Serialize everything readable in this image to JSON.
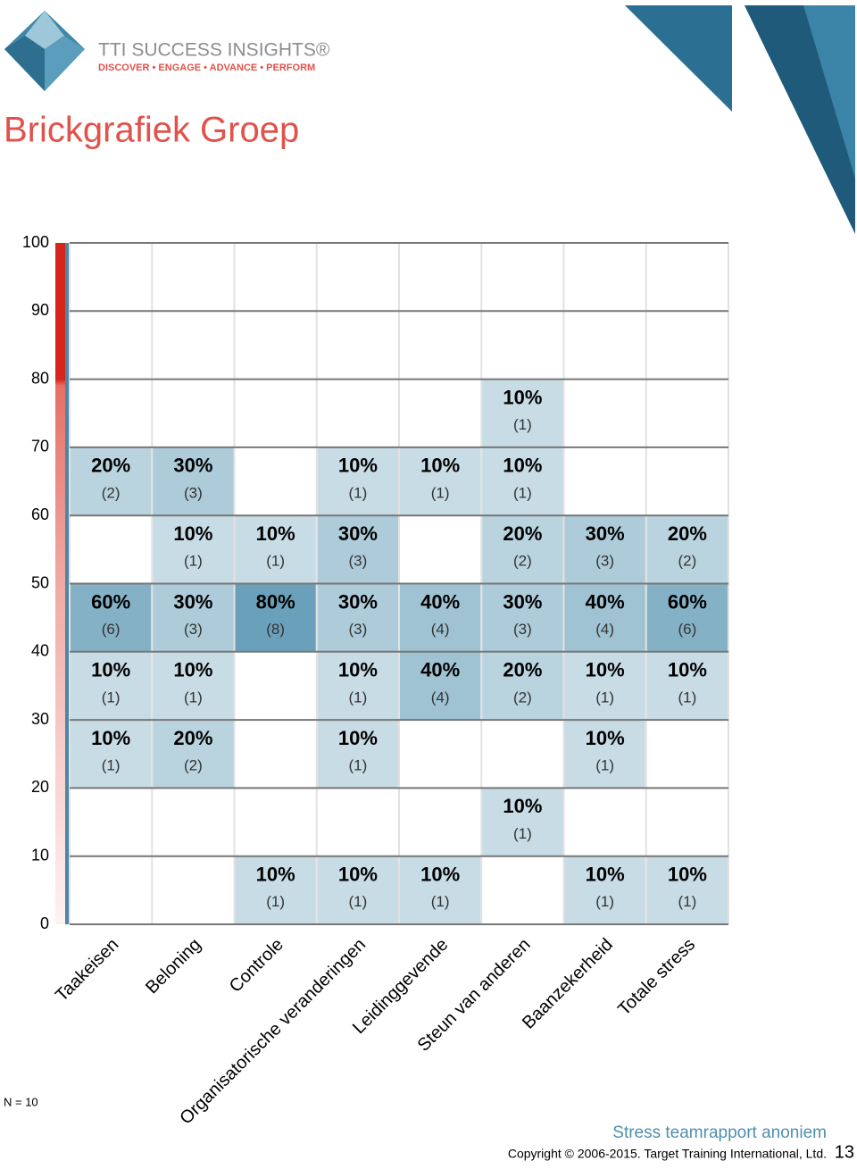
{
  "header": {
    "brand": "TTI SUCCESS INSIGHTS®",
    "tagline": "DISCOVER • ENGAGE • ADVANCE • PERFORM"
  },
  "chart_data": {
    "type": "brick",
    "title": "Brickgrafiek Groep",
    "ylim": [
      0,
      100
    ],
    "yticks": [
      0,
      10,
      20,
      30,
      40,
      50,
      60,
      70,
      80,
      90,
      100
    ],
    "band_size": 10,
    "colors": [
      "#d5e5eb",
      "#4f8fae"
    ],
    "series": [
      {
        "name": "Taakeisen",
        "bricks": [
          {
            "band": 60,
            "value": 20,
            "value_label": "20%",
            "count": 2,
            "count_label": "(2)"
          },
          {
            "band": 40,
            "value": 60,
            "value_label": "60%",
            "count": 6,
            "count_label": "(6)"
          },
          {
            "band": 30,
            "value": 10,
            "value_label": "10%",
            "count": 1,
            "count_label": "(1)"
          },
          {
            "band": 20,
            "value": 10,
            "value_label": "10%",
            "count": 1,
            "count_label": "(1)"
          }
        ]
      },
      {
        "name": "Beloning",
        "bricks": [
          {
            "band": 60,
            "value": 30,
            "value_label": "30%",
            "count": 3,
            "count_label": "(3)"
          },
          {
            "band": 50,
            "value": 10,
            "value_label": "10%",
            "count": 1,
            "count_label": "(1)"
          },
          {
            "band": 40,
            "value": 30,
            "value_label": "30%",
            "count": 3,
            "count_label": "(3)"
          },
          {
            "band": 30,
            "value": 10,
            "value_label": "10%",
            "count": 1,
            "count_label": "(1)"
          },
          {
            "band": 20,
            "value": 20,
            "value_label": "20%",
            "count": 2,
            "count_label": "(2)"
          }
        ]
      },
      {
        "name": "Controle",
        "bricks": [
          {
            "band": 50,
            "value": 10,
            "value_label": "10%",
            "count": 1,
            "count_label": "(1)"
          },
          {
            "band": 40,
            "value": 80,
            "value_label": "80%",
            "count": 8,
            "count_label": "(8)"
          },
          {
            "band": 0,
            "value": 10,
            "value_label": "10%",
            "count": 1,
            "count_label": "(1)"
          }
        ]
      },
      {
        "name": "Organisatorische veranderingen",
        "bricks": [
          {
            "band": 60,
            "value": 10,
            "value_label": "10%",
            "count": 1,
            "count_label": "(1)"
          },
          {
            "band": 50,
            "value": 30,
            "value_label": "30%",
            "count": 3,
            "count_label": "(3)"
          },
          {
            "band": 40,
            "value": 30,
            "value_label": "30%",
            "count": 3,
            "count_label": "(3)"
          },
          {
            "band": 30,
            "value": 10,
            "value_label": "10%",
            "count": 1,
            "count_label": "(1)"
          },
          {
            "band": 20,
            "value": 10,
            "value_label": "10%",
            "count": 1,
            "count_label": "(1)"
          },
          {
            "band": 0,
            "value": 10,
            "value_label": "10%",
            "count": 1,
            "count_label": "(1)"
          }
        ]
      },
      {
        "name": "Leidinggevende",
        "bricks": [
          {
            "band": 60,
            "value": 10,
            "value_label": "10%",
            "count": 1,
            "count_label": "(1)"
          },
          {
            "band": 40,
            "value": 40,
            "value_label": "40%",
            "count": 4,
            "count_label": "(4)"
          },
          {
            "band": 30,
            "value": 40,
            "value_label": "40%",
            "count": 4,
            "count_label": "(4)"
          },
          {
            "band": 0,
            "value": 10,
            "value_label": "10%",
            "count": 1,
            "count_label": "(1)"
          }
        ]
      },
      {
        "name": "Steun van anderen",
        "bricks": [
          {
            "band": 70,
            "value": 10,
            "value_label": "10%",
            "count": 1,
            "count_label": "(1)"
          },
          {
            "band": 60,
            "value": 10,
            "value_label": "10%",
            "count": 1,
            "count_label": "(1)"
          },
          {
            "band": 50,
            "value": 20,
            "value_label": "20%",
            "count": 2,
            "count_label": "(2)"
          },
          {
            "band": 40,
            "value": 30,
            "value_label": "30%",
            "count": 3,
            "count_label": "(3)"
          },
          {
            "band": 30,
            "value": 20,
            "value_label": "20%",
            "count": 2,
            "count_label": "(2)"
          },
          {
            "band": 10,
            "value": 10,
            "value_label": "10%",
            "count": 1,
            "count_label": "(1)"
          }
        ]
      },
      {
        "name": "Baanzekerheid",
        "bricks": [
          {
            "band": 50,
            "value": 30,
            "value_label": "30%",
            "count": 3,
            "count_label": "(3)"
          },
          {
            "band": 40,
            "value": 40,
            "value_label": "40%",
            "count": 4,
            "count_label": "(4)"
          },
          {
            "band": 30,
            "value": 10,
            "value_label": "10%",
            "count": 1,
            "count_label": "(1)"
          },
          {
            "band": 20,
            "value": 10,
            "value_label": "10%",
            "count": 1,
            "count_label": "(1)"
          },
          {
            "band": 0,
            "value": 10,
            "value_label": "10%",
            "count": 1,
            "count_label": "(1)"
          }
        ]
      },
      {
        "name": "Totale stress",
        "bricks": [
          {
            "band": 50,
            "value": 20,
            "value_label": "20%",
            "count": 2,
            "count_label": "(2)"
          },
          {
            "band": 40,
            "value": 60,
            "value_label": "60%",
            "count": 6,
            "count_label": "(6)"
          },
          {
            "band": 30,
            "value": 10,
            "value_label": "10%",
            "count": 1,
            "count_label": "(1)"
          },
          {
            "band": 0,
            "value": 10,
            "value_label": "10%",
            "count": 1,
            "count_label": "(1)"
          }
        ]
      }
    ],
    "note": "N = 10"
  },
  "footer": {
    "report": "Stress teamrapport anoniem",
    "copyright": "Copyright © 2006-2015. Target Training International, Ltd.",
    "page": "13"
  }
}
